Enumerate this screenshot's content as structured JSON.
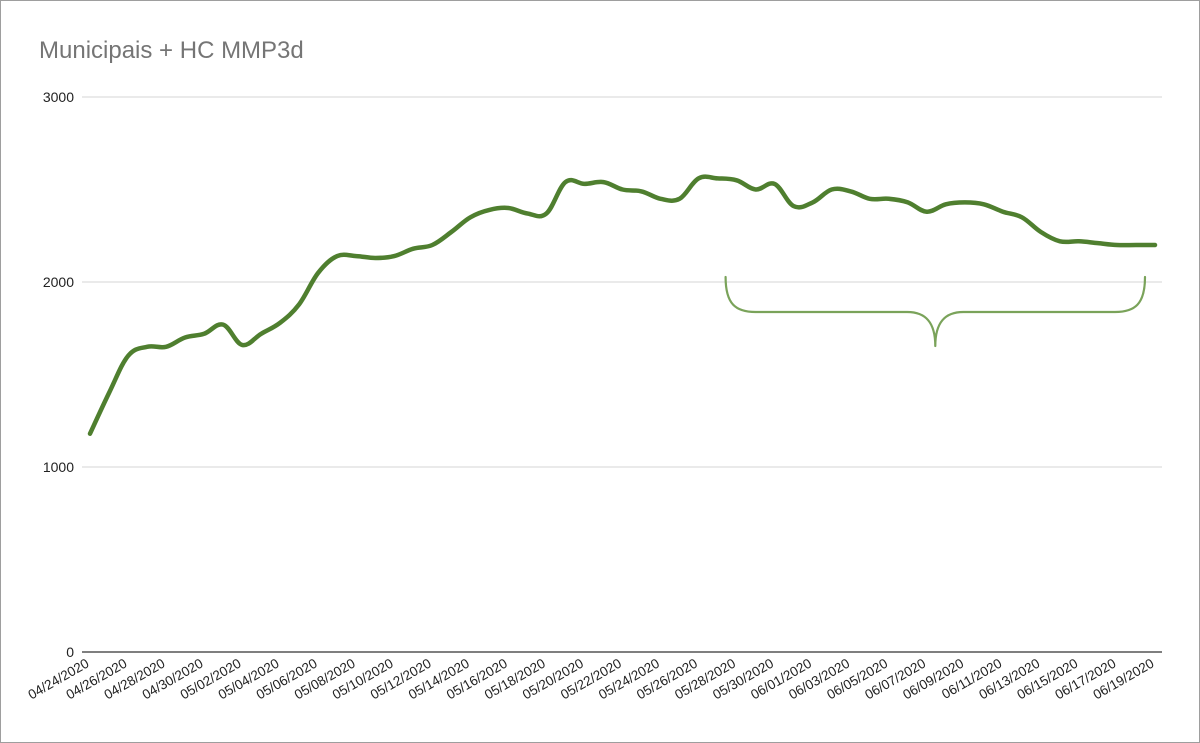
{
  "chart_data": {
    "type": "line",
    "title": "Municipais + HC MMP3d",
    "xlabel": "",
    "ylabel": "",
    "ylim": [
      0,
      3000
    ],
    "yticks": [
      "0",
      "1000",
      "2000",
      "3000"
    ],
    "grid": true,
    "line_color": "#4f7f2f",
    "brace_color": "#7aa35a",
    "brace_x_range": [
      "05/27/2020",
      "06/19/2020"
    ],
    "x_tick_labels": [
      "04/24/2020",
      "04/26/2020",
      "04/28/2020",
      "04/30/2020",
      "05/02/2020",
      "05/04/2020",
      "05/06/2020",
      "05/08/2020",
      "05/10/2020",
      "05/12/2020",
      "05/14/2020",
      "05/16/2020",
      "05/18/2020",
      "05/20/2020",
      "05/22/2020",
      "05/24/2020",
      "05/26/2020",
      "05/28/2020",
      "05/30/2020",
      "06/01/2020",
      "06/03/2020",
      "06/05/2020",
      "06/07/2020",
      "06/09/2020",
      "06/11/2020",
      "06/13/2020",
      "06/15/2020",
      "06/17/2020",
      "06/19/2020"
    ],
    "x": [
      "04/24/2020",
      "04/25/2020",
      "04/26/2020",
      "04/27/2020",
      "04/28/2020",
      "04/29/2020",
      "04/30/2020",
      "05/01/2020",
      "05/02/2020",
      "05/03/2020",
      "05/04/2020",
      "05/05/2020",
      "05/06/2020",
      "05/07/2020",
      "05/08/2020",
      "05/09/2020",
      "05/10/2020",
      "05/11/2020",
      "05/12/2020",
      "05/13/2020",
      "05/14/2020",
      "05/15/2020",
      "05/16/2020",
      "05/17/2020",
      "05/18/2020",
      "05/19/2020",
      "05/20/2020",
      "05/21/2020",
      "05/22/2020",
      "05/23/2020",
      "05/24/2020",
      "05/25/2020",
      "05/26/2020",
      "05/27/2020",
      "05/28/2020",
      "05/29/2020",
      "05/30/2020",
      "05/31/2020",
      "06/01/2020",
      "06/02/2020",
      "06/03/2020",
      "06/04/2020",
      "06/05/2020",
      "06/06/2020",
      "06/07/2020",
      "06/08/2020",
      "06/09/2020",
      "06/10/2020",
      "06/11/2020",
      "06/12/2020",
      "06/13/2020",
      "06/14/2020",
      "06/15/2020",
      "06/16/2020",
      "06/17/2020",
      "06/18/2020",
      "06/19/2020"
    ],
    "series": [
      {
        "values": [
          1180,
          1400,
          1600,
          1650,
          1650,
          1700,
          1720,
          1770,
          1660,
          1720,
          1780,
          1880,
          2050,
          2140,
          2140,
          2130,
          2140,
          2180,
          2200,
          2270,
          2350,
          2390,
          2400,
          2370,
          2370,
          2540,
          2530,
          2540,
          2500,
          2490,
          2450,
          2450,
          2560,
          2560,
          2550,
          2500,
          2530,
          2410,
          2430,
          2500,
          2490,
          2450,
          2450,
          2430,
          2380,
          2420,
          2430,
          2420,
          2380,
          2350,
          2270,
          2220,
          2220,
          2210,
          2200,
          2200,
          2200
        ]
      }
    ]
  }
}
